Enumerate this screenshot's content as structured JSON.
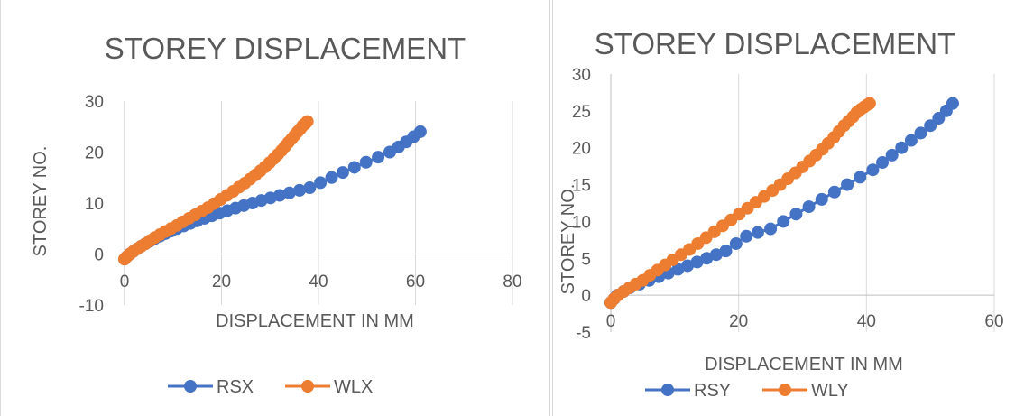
{
  "chart_data": [
    {
      "type": "scatter",
      "title": "STOREY DISPLACEMENT",
      "xlabel": "DISPLACEMENT IN MM",
      "ylabel": "STOREY NO.",
      "xlim": [
        0,
        80
      ],
      "ylim": [
        -10,
        30
      ],
      "x_ticks": [
        "0",
        "20",
        "40",
        "60",
        "80"
      ],
      "y_ticks": [
        "-10",
        "0",
        "10",
        "20",
        "30"
      ],
      "grid": "vertical",
      "legend_position": "bottom",
      "series": [
        {
          "name": "RSX",
          "color": "#4472C4",
          "x": [
            0,
            0.5,
            1.1,
            1.8,
            2.6,
            3.4,
            4.3,
            5.2,
            6.2,
            7.3,
            8.4,
            9.6,
            10.8,
            12.2,
            13.6,
            15.0,
            16.5,
            18.0,
            19.6,
            21.2,
            22.9,
            24.6,
            26.4,
            28.2,
            30.1,
            32.0,
            34.0,
            36.1,
            38.2,
            40.4,
            42.7,
            45.0,
            47.4,
            49.8,
            52.3,
            54.7,
            56.5,
            58.1,
            59.6,
            61.0
          ],
          "y": [
            -1,
            -0.5,
            0,
            0.5,
            1,
            1.5,
            2,
            2.5,
            3,
            3.5,
            4,
            4.5,
            5,
            5.5,
            6,
            6.5,
            7,
            7.5,
            8,
            8.5,
            9,
            9.5,
            10,
            10.5,
            11,
            11.5,
            12,
            12.5,
            13,
            14,
            15,
            16,
            17,
            18,
            19,
            20,
            21,
            22,
            23,
            24
          ]
        },
        {
          "name": "WLX",
          "color": "#ED7D31",
          "x": [
            0,
            0.5,
            1.1,
            1.8,
            2.6,
            3.4,
            4.3,
            5.2,
            6.2,
            7.3,
            8.4,
            9.6,
            10.8,
            12.0,
            13.3,
            14.6,
            15.9,
            17.2,
            18.5,
            19.8,
            21.1,
            22.4,
            23.6,
            24.8,
            25.9,
            27.0,
            28.0,
            29.0,
            29.9,
            30.8,
            31.6,
            32.4,
            33.1,
            33.8,
            34.5,
            35.1,
            35.7,
            36.3,
            36.8,
            37.3,
            37.7
          ],
          "y": [
            -1,
            -0.5,
            0,
            0.5,
            1,
            1.5,
            2,
            2.6,
            3.2,
            3.8,
            4.4,
            5,
            5.6,
            6.3,
            7,
            7.7,
            8.4,
            9.1,
            9.9,
            10.7,
            11.5,
            12.3,
            13.1,
            13.9,
            14.7,
            15.5,
            16.3,
            17.1,
            17.9,
            18.7,
            19.5,
            20.3,
            21.1,
            21.9,
            22.6,
            23.3,
            24.0,
            24.6,
            25.2,
            25.6,
            26.0
          ]
        }
      ]
    },
    {
      "type": "scatter",
      "title": "STOREY DISPLACEMENT",
      "xlabel": "DISPLACEMENT IN MM",
      "ylabel": "STOREY NO.",
      "xlim": [
        0,
        60
      ],
      "ylim": [
        -5,
        30
      ],
      "x_ticks": [
        "0",
        "20",
        "40",
        "60"
      ],
      "y_ticks": [
        "-5",
        "0",
        "5",
        "10",
        "15",
        "20",
        "25",
        "30"
      ],
      "grid": "vertical",
      "legend_position": "bottom",
      "series": [
        {
          "name": "RSY",
          "color": "#4472C4",
          "x": [
            0,
            0.5,
            1.0,
            2.0,
            3.0,
            4.5,
            6.0,
            7.5,
            9.0,
            10.5,
            12.0,
            13.5,
            15.0,
            16.5,
            18.0,
            19.6,
            21.2,
            23.0,
            25.0,
            27.0,
            29.0,
            31.0,
            33.0,
            35.0,
            37.0,
            39.0,
            41.0,
            42.5,
            44.0,
            45.5,
            47.0,
            48.5,
            50.0,
            51.3,
            52.5,
            53.5
          ],
          "y": [
            -1,
            -0.5,
            0,
            0.5,
            1,
            1.5,
            2,
            2.5,
            3,
            3.5,
            4,
            4.5,
            5,
            5.5,
            6,
            7,
            8,
            8.5,
            9,
            10,
            11,
            12,
            13,
            14,
            15,
            16,
            17,
            18,
            19,
            20,
            21,
            22,
            23,
            24,
            25,
            26
          ]
        },
        {
          "name": "WLY",
          "color": "#ED7D31",
          "x": [
            0,
            0.5,
            1.1,
            2.0,
            2.9,
            3.9,
            5.0,
            6.1,
            7.3,
            8.5,
            9.7,
            11.0,
            12.3,
            13.6,
            14.9,
            16.2,
            17.5,
            18.8,
            20.1,
            21.4,
            22.7,
            24.0,
            25.3,
            26.5,
            27.7,
            28.9,
            30.0,
            31.1,
            32.1,
            33.1,
            34.0,
            34.9,
            35.7,
            36.5,
            37.2,
            37.9,
            38.5,
            39.1,
            39.6,
            40.1,
            40.5
          ],
          "y": [
            -1,
            -0.5,
            0,
            0.5,
            1,
            1.5,
            2,
            2.7,
            3.4,
            4.1,
            4.8,
            5.5,
            6.2,
            7.0,
            7.8,
            8.6,
            9.4,
            10.2,
            11.0,
            11.8,
            12.6,
            13.4,
            14.2,
            15.0,
            15.8,
            16.6,
            17.4,
            18.2,
            19.0,
            19.8,
            20.6,
            21.4,
            22.2,
            23.0,
            23.6,
            24.2,
            24.8,
            25.2,
            25.5,
            25.8,
            26.0
          ]
        }
      ]
    }
  ]
}
